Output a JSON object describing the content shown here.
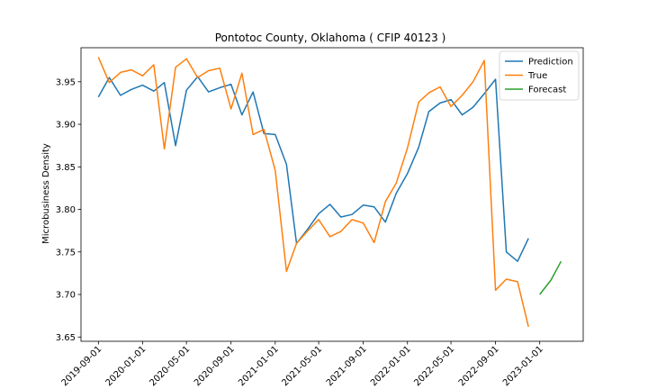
{
  "chart_data": {
    "type": "line",
    "title": "Pontotoc County, Oklahoma ( CFIP 40123 )",
    "xlabel": "",
    "ylabel": "Microbusiness Density",
    "ylim": [
      3.645,
      3.99
    ],
    "xlim": [
      "2019-07-15",
      "2023-05-01"
    ],
    "y_ticks": [
      3.65,
      3.7,
      3.75,
      3.8,
      3.85,
      3.9,
      3.95
    ],
    "y_tick_labels": [
      "3.65",
      "3.70",
      "3.75",
      "3.80",
      "3.85",
      "3.90",
      "3.95"
    ],
    "x_ticks": [
      "2019-09-01",
      "2020-01-01",
      "2020-05-01",
      "2020-09-01",
      "2021-01-01",
      "2021-05-01",
      "2021-09-01",
      "2022-01-01",
      "2022-05-01",
      "2022-09-01",
      "2023-01-01"
    ],
    "legend_position": "top-right",
    "grid": false,
    "series": [
      {
        "name": "Prediction",
        "color": "#1f77b4",
        "x": [
          "2019-09-01",
          "2019-10-01",
          "2019-11-01",
          "2019-12-01",
          "2020-01-01",
          "2020-02-01",
          "2020-03-01",
          "2020-04-01",
          "2020-05-01",
          "2020-06-01",
          "2020-07-01",
          "2020-08-01",
          "2020-09-01",
          "2020-10-01",
          "2020-11-01",
          "2020-12-01",
          "2021-01-01",
          "2021-02-01",
          "2021-03-01",
          "2021-04-01",
          "2021-05-01",
          "2021-06-01",
          "2021-07-01",
          "2021-08-01",
          "2021-09-01",
          "2021-10-01",
          "2021-11-01",
          "2021-12-01",
          "2022-01-01",
          "2022-02-01",
          "2022-03-01",
          "2022-04-01",
          "2022-05-01",
          "2022-06-01",
          "2022-07-01",
          "2022-08-01",
          "2022-09-01",
          "2022-10-01",
          "2022-11-01",
          "2022-12-01"
        ],
        "values": [
          3.932,
          3.955,
          3.934,
          3.941,
          3.946,
          3.939,
          3.949,
          3.875,
          3.94,
          3.956,
          3.938,
          3.943,
          3.947,
          3.911,
          3.938,
          3.889,
          3.888,
          3.853,
          3.76,
          3.777,
          3.795,
          3.806,
          3.791,
          3.794,
          3.805,
          3.803,
          3.785,
          3.819,
          3.842,
          3.873,
          3.915,
          3.925,
          3.929,
          3.911,
          3.92,
          3.936,
          3.953,
          3.75,
          3.739,
          3.766
        ]
      },
      {
        "name": "True",
        "color": "#ff7f0e",
        "x": [
          "2019-09-01",
          "2019-10-01",
          "2019-11-01",
          "2019-12-01",
          "2020-01-01",
          "2020-02-01",
          "2020-03-01",
          "2020-04-01",
          "2020-05-01",
          "2020-06-01",
          "2020-07-01",
          "2020-08-01",
          "2020-09-01",
          "2020-10-01",
          "2020-11-01",
          "2020-12-01",
          "2021-01-01",
          "2021-02-01",
          "2021-03-01",
          "2021-04-01",
          "2021-05-01",
          "2021-06-01",
          "2021-07-01",
          "2021-08-01",
          "2021-09-01",
          "2021-10-01",
          "2021-11-01",
          "2021-12-01",
          "2022-01-01",
          "2022-02-01",
          "2022-03-01",
          "2022-04-01",
          "2022-05-01",
          "2022-06-01",
          "2022-07-01",
          "2022-08-01",
          "2022-09-01",
          "2022-10-01",
          "2022-11-01",
          "2022-12-01"
        ],
        "values": [
          3.979,
          3.949,
          3.961,
          3.964,
          3.957,
          3.97,
          3.871,
          3.967,
          3.977,
          3.955,
          3.963,
          3.966,
          3.918,
          3.96,
          3.888,
          3.894,
          3.846,
          3.727,
          3.76,
          3.775,
          3.788,
          3.768,
          3.774,
          3.788,
          3.784,
          3.761,
          3.809,
          3.831,
          3.872,
          3.926,
          3.937,
          3.944,
          3.921,
          3.934,
          3.95,
          3.975,
          3.705,
          3.718,
          3.715,
          3.662
        ]
      },
      {
        "name": "Forecast",
        "color": "#2ca02c",
        "x": [
          "2023-01-01",
          "2023-02-01",
          "2023-03-01"
        ],
        "values": [
          3.7,
          3.717,
          3.739
        ]
      }
    ]
  }
}
